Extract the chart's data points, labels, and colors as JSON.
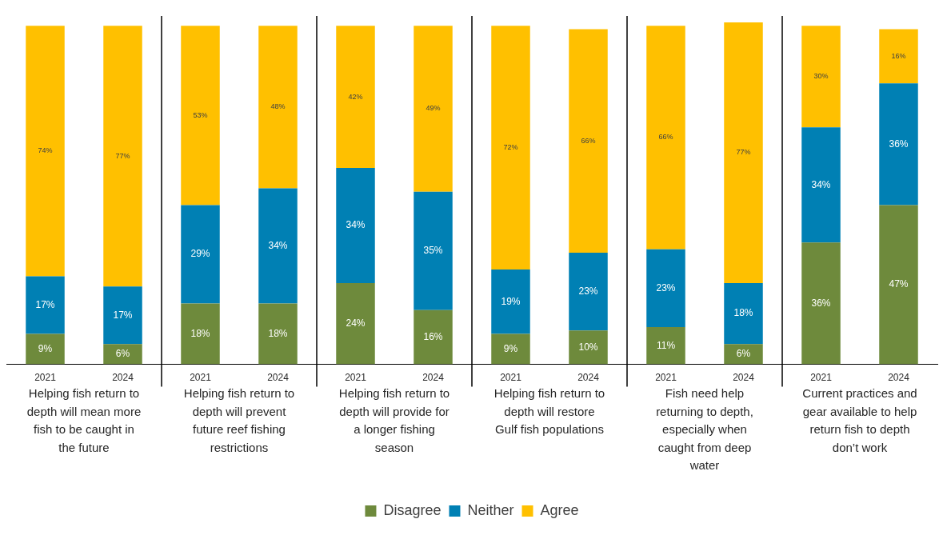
{
  "chart_data": {
    "type": "bar",
    "stacked": true,
    "grid": false,
    "legend": "bottom",
    "categories": [
      "2021",
      "2024",
      "2021",
      "2024",
      "2021",
      "2024",
      "2021",
      "2024",
      "2021",
      "2024",
      "2021",
      "2024"
    ],
    "series": [
      {
        "name": "Disagree",
        "color": "#6e8a3c",
        "values": [
          9,
          6,
          18,
          18,
          24,
          16,
          9,
          10,
          11,
          6,
          36,
          47
        ],
        "value_labels": [
          "9%",
          "6%",
          "18%",
          "18%",
          "24%",
          "16%",
          "9%",
          "10%",
          "11%",
          "6%",
          "36%",
          "47%"
        ]
      },
      {
        "name": "Neither",
        "color": "#0080b4",
        "values": [
          17,
          17,
          29,
          34,
          34,
          35,
          19,
          23,
          23,
          18,
          34,
          36
        ],
        "value_labels": [
          "17%",
          "17%",
          "29%",
          "34%",
          "34%",
          "35%",
          "19%",
          "23%",
          "23%",
          "18%",
          "34%",
          "36%"
        ]
      },
      {
        "name": "Agree",
        "color": "#ffc000",
        "values": [
          74,
          77,
          53,
          48,
          42,
          49,
          72,
          66,
          66,
          77,
          30,
          16
        ],
        "value_labels": [
          "74%",
          "77%",
          "53%",
          "48%",
          "42%",
          "49%",
          "72%",
          "66%",
          "66%",
          "77%",
          "30%",
          "16%"
        ]
      }
    ],
    "annotations": [
      "Helping fish return to depth will mean more fish to be caught in the future",
      "Helping fish return to depth will prevent future reef fishing restrictions",
      "Helping fish return to depth will provide for a longer fishing season",
      "Helping fish return to depth will restore Gulf fish populations",
      "Fish need help returning to depth, especially when caught from deep water",
      "Current practices and gear available to help return fish to depth don’t work"
    ]
  }
}
